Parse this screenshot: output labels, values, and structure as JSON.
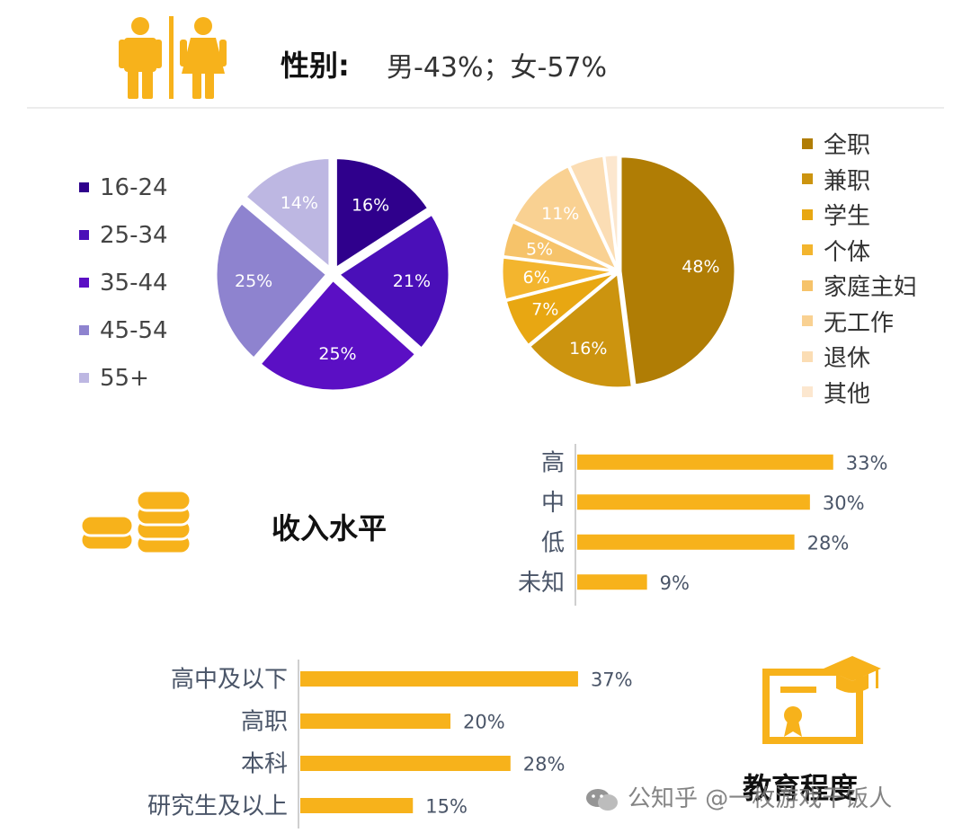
{
  "gender": {
    "heading": "性别:",
    "text": "男-43%；女-57%",
    "icon": "male-female-restroom-icon"
  },
  "income": {
    "heading": "收入水平",
    "icon": "coin-stacks-icon"
  },
  "education": {
    "heading": "教育程度",
    "icon": "diploma-certificate-icon"
  },
  "watermark": {
    "text": "公知乎 @一枚游戏干饭人",
    "icon": "wechat-logo-icon"
  },
  "colors": {
    "accent_orange": "#F7B21B",
    "age": [
      "#2F008C",
      "#4A0FB8",
      "#5B0FC4",
      "#8E83CF",
      "#BDB7E2"
    ],
    "job": [
      "#B07D05",
      "#CC940F",
      "#E8A712",
      "#F3B52E",
      "#F6C36A",
      "#F9D192",
      "#FBDDB4",
      "#FCE7CF"
    ]
  },
  "chart_data": [
    {
      "type": "pie",
      "categories": [
        "16-24",
        "25-34",
        "35-44",
        "45-54",
        "55+"
      ],
      "values": [
        16,
        21,
        25,
        25,
        14
      ],
      "data_labels": [
        "16%",
        "21%",
        "25%",
        "25%",
        "14%"
      ],
      "legend": "left"
    },
    {
      "type": "pie",
      "categories": [
        "全职",
        "兼职",
        "学生",
        "个体",
        "家庭主妇",
        "无工作",
        "退休",
        "其他"
      ],
      "values": [
        48,
        16,
        7,
        6,
        5,
        11,
        5,
        2
      ],
      "data_labels": [
        "48%",
        "16%",
        "7%",
        "6%",
        "5%",
        "11%",
        "",
        ""
      ],
      "legend": "right"
    },
    {
      "type": "bar",
      "orientation": "horizontal",
      "categories": [
        "高",
        "中",
        "低",
        "未知"
      ],
      "values": [
        33,
        30,
        28,
        9
      ],
      "data_labels": [
        "33%",
        "30%",
        "28%",
        "9%"
      ],
      "xlim": [
        0,
        35
      ]
    },
    {
      "type": "bar",
      "orientation": "horizontal",
      "categories": [
        "高中及以下",
        "高职",
        "本科",
        "研究生及以上"
      ],
      "values": [
        37,
        20,
        28,
        15
      ],
      "data_labels": [
        "37%",
        "20%",
        "28%",
        "15%"
      ],
      "xlim": [
        0,
        40
      ]
    }
  ]
}
